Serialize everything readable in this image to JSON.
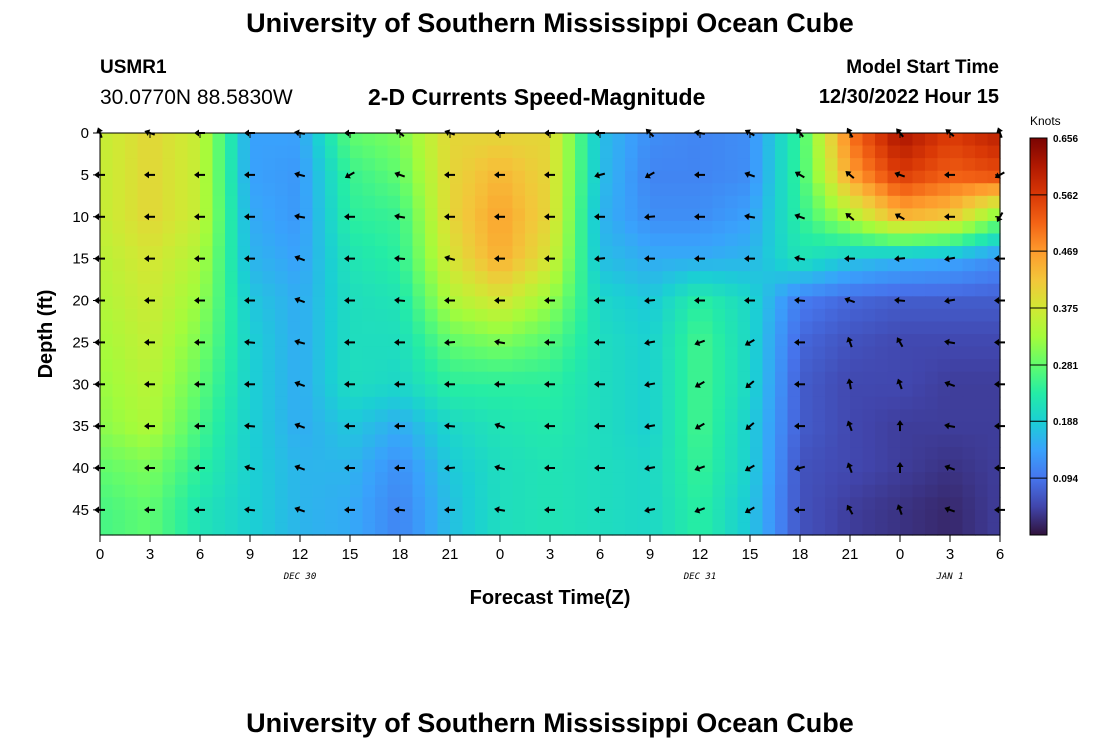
{
  "page": {
    "title": "University of Southern Mississippi Ocean Cube",
    "repeat_title": "University of Southern Mississippi Ocean Cube",
    "station": "USMR1",
    "coordinates": "30.0770N  88.5830W",
    "model_start_label": "Model Start Time",
    "model_start_value": "12/30/2022 Hour 15"
  },
  "chart_data": {
    "type": "heatmap",
    "title": "2-D Currents Speed-Magnitude",
    "xlabel": "Forecast Time(Z)",
    "ylabel": "Depth (ft)",
    "x_range_hours": [
      0,
      54
    ],
    "y_range_ft": [
      0,
      48
    ],
    "x_tick_labels": [
      "0",
      "3",
      "6",
      "9",
      "12",
      "15",
      "18",
      "21",
      "0",
      "3",
      "6",
      "9",
      "12",
      "15",
      "18",
      "21",
      "0",
      "3",
      "6"
    ],
    "y_ticks": [
      0,
      5,
      10,
      15,
      20,
      25,
      30,
      35,
      40,
      45
    ],
    "date_labels": [
      {
        "text": "DEC 30",
        "hour": 12
      },
      {
        "text": "DEC 31",
        "hour": 36
      },
      {
        "text": "JAN 1",
        "hour": 51
      }
    ],
    "colorbar": {
      "label": "Knots",
      "ticks": [
        "0.656",
        "0.562",
        "0.469",
        "0.375",
        "0.281",
        "0.188",
        "0.094"
      ],
      "min": 0.0,
      "max": 0.656,
      "colormap": [
        "#30123b",
        "#4145ab",
        "#4675ed",
        "#39a2fc",
        "#1bcfd4",
        "#24eca6",
        "#61fc6c",
        "#a4fc3b",
        "#d1e834",
        "#f3c63a",
        "#fe9b2d",
        "#f36315",
        "#d93806",
        "#b11901",
        "#7a0402"
      ]
    },
    "depths_ft": [
      0,
      5,
      10,
      15,
      20,
      25,
      30,
      35,
      40,
      45
    ],
    "hours": [
      0,
      3,
      6,
      9,
      12,
      15,
      18,
      21,
      24,
      27,
      30,
      33,
      36,
      39,
      42,
      45,
      48,
      51,
      54
    ],
    "speed_knots": [
      [
        0.36,
        0.4,
        0.36,
        0.14,
        0.14,
        0.28,
        0.3,
        0.4,
        0.4,
        0.4,
        0.17,
        0.12,
        0.11,
        0.12,
        0.25,
        0.5,
        0.62,
        0.56,
        0.6
      ],
      [
        0.36,
        0.4,
        0.36,
        0.14,
        0.13,
        0.25,
        0.28,
        0.4,
        0.44,
        0.4,
        0.17,
        0.11,
        0.11,
        0.12,
        0.25,
        0.46,
        0.56,
        0.52,
        0.54
      ],
      [
        0.36,
        0.4,
        0.36,
        0.15,
        0.13,
        0.24,
        0.25,
        0.4,
        0.46,
        0.4,
        0.16,
        0.12,
        0.12,
        0.14,
        0.24,
        0.34,
        0.44,
        0.42,
        0.3
      ],
      [
        0.35,
        0.38,
        0.34,
        0.16,
        0.14,
        0.22,
        0.24,
        0.38,
        0.45,
        0.38,
        0.17,
        0.15,
        0.15,
        0.16,
        0.22,
        0.18,
        0.16,
        0.15,
        0.12
      ],
      [
        0.34,
        0.37,
        0.32,
        0.18,
        0.15,
        0.21,
        0.22,
        0.34,
        0.38,
        0.32,
        0.2,
        0.18,
        0.24,
        0.2,
        0.1,
        0.08,
        0.07,
        0.07,
        0.07
      ],
      [
        0.33,
        0.36,
        0.3,
        0.19,
        0.15,
        0.21,
        0.21,
        0.28,
        0.3,
        0.27,
        0.21,
        0.19,
        0.26,
        0.2,
        0.08,
        0.06,
        0.05,
        0.05,
        0.05
      ],
      [
        0.32,
        0.35,
        0.28,
        0.19,
        0.15,
        0.21,
        0.2,
        0.24,
        0.24,
        0.24,
        0.21,
        0.19,
        0.26,
        0.2,
        0.07,
        0.05,
        0.05,
        0.04,
        0.04
      ],
      [
        0.31,
        0.34,
        0.26,
        0.19,
        0.15,
        0.18,
        0.15,
        0.2,
        0.22,
        0.23,
        0.21,
        0.19,
        0.26,
        0.19,
        0.07,
        0.05,
        0.04,
        0.04,
        0.04
      ],
      [
        0.28,
        0.3,
        0.24,
        0.19,
        0.16,
        0.16,
        0.12,
        0.18,
        0.21,
        0.22,
        0.21,
        0.2,
        0.25,
        0.19,
        0.06,
        0.05,
        0.04,
        0.03,
        0.04
      ],
      [
        0.26,
        0.28,
        0.22,
        0.19,
        0.16,
        0.15,
        0.11,
        0.17,
        0.21,
        0.22,
        0.21,
        0.2,
        0.24,
        0.18,
        0.06,
        0.04,
        0.03,
        0.02,
        0.04
      ]
    ],
    "direction_deg": [
      [
        200,
        250,
        270,
        270,
        260,
        270,
        230,
        250,
        270,
        270,
        270,
        225,
        260,
        240,
        220,
        210,
        220,
        230,
        200
      ],
      [
        270,
        270,
        270,
        270,
        255,
        300,
        250,
        270,
        270,
        270,
        285,
        300,
        270,
        250,
        240,
        230,
        250,
        270,
        300
      ],
      [
        270,
        270,
        270,
        270,
        260,
        270,
        260,
        270,
        270,
        270,
        270,
        275,
        270,
        260,
        250,
        230,
        240,
        270,
        330
      ],
      [
        270,
        270,
        270,
        270,
        250,
        270,
        265,
        255,
        270,
        270,
        275,
        270,
        270,
        270,
        260,
        270,
        275,
        280,
        270
      ],
      [
        270,
        270,
        270,
        270,
        250,
        270,
        265,
        270,
        270,
        270,
        270,
        275,
        270,
        270,
        265,
        250,
        265,
        280,
        270
      ],
      [
        270,
        270,
        270,
        265,
        255,
        270,
        270,
        275,
        260,
        270,
        270,
        280,
        290,
        300,
        270,
        200,
        210,
        260,
        270
      ],
      [
        270,
        270,
        270,
        270,
        250,
        270,
        270,
        270,
        270,
        270,
        270,
        280,
        300,
        310,
        270,
        190,
        200,
        250,
        270
      ],
      [
        270,
        270,
        270,
        265,
        250,
        270,
        270,
        265,
        250,
        270,
        270,
        280,
        300,
        310,
        270,
        200,
        180,
        260,
        270
      ],
      [
        270,
        270,
        270,
        255,
        250,
        270,
        270,
        275,
        255,
        270,
        270,
        280,
        290,
        300,
        285,
        200,
        180,
        250,
        270
      ],
      [
        270,
        270,
        270,
        265,
        250,
        270,
        265,
        270,
        260,
        270,
        270,
        280,
        290,
        300,
        270,
        210,
        200,
        250,
        270
      ]
    ]
  }
}
